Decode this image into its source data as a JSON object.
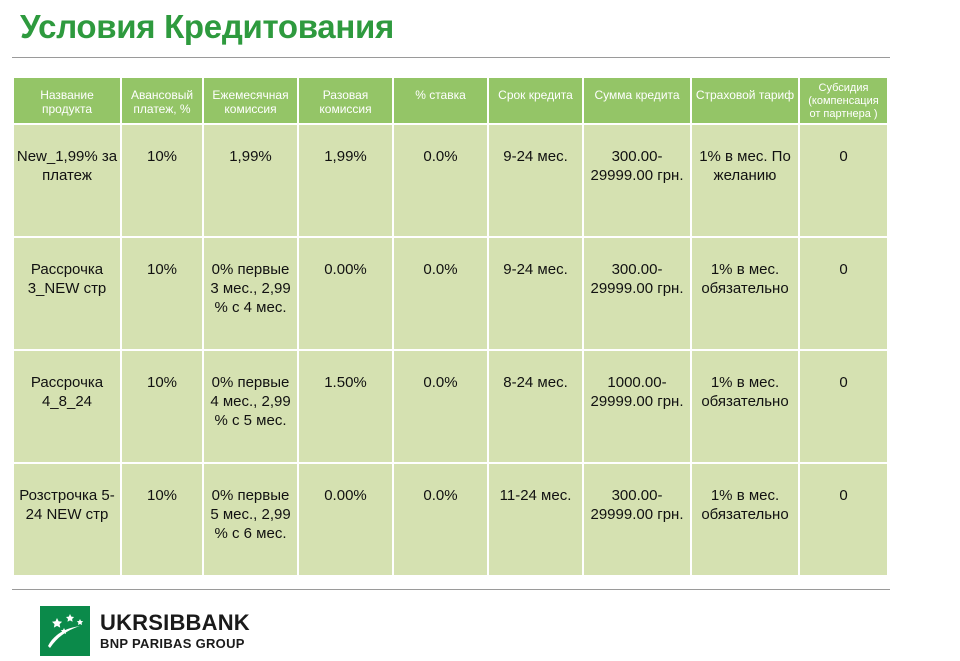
{
  "title": "Условия Кредитования",
  "table": {
    "headers": [
      "Название продукта",
      "Авансовый платеж, %",
      "Ежемесячная комиссия",
      "Разовая комиссия",
      "% ставка",
      "Срок кредита",
      "Сумма кредита",
      "Страховой тариф",
      "Субсидия (компенсация от партнера )"
    ],
    "rows": [
      [
        "New_1,99% за платеж",
        "10%",
        "1,99%",
        "1,99%",
        "0.0%",
        "9-24 мес.",
        "300.00-29999.00 грн.",
        "1% в мес. По желанию",
        "0"
      ],
      [
        "Рассрочка 3_NEW стр",
        "10%",
        "0% первые 3 мес., 2,99 % с 4 мес.",
        "0.00%",
        "0.0%",
        "9-24 мес.",
        "300.00-29999.00 грн.",
        "1% в мес. обязательно",
        "0"
      ],
      [
        "Рассрочка 4_8_24",
        "10%",
        "0% первые 4 мес., 2,99 % с 5 мес.",
        "1.50%",
        "0.0%",
        "8-24 мес.",
        "1000.00-29999.00 грн.",
        "1% в мес. обязательно",
        "0"
      ],
      [
        "Розстрочка 5-24 NEW стр",
        "10%",
        "0% первые 5 мес., 2,99 % с 6 мес.",
        "0.00%",
        "0.0%",
        "11-24 мес.",
        "300.00-29999.00 грн.",
        "1% в мес. обязательно",
        "0"
      ]
    ]
  },
  "brand": {
    "name": "UKRSIBBANK",
    "group": "BNP PARIBAS GROUP",
    "logo_icon": "bnp-stars-logo-icon",
    "colors": {
      "title_green": "#2e9a3e",
      "header_green": "#94c567",
      "cell_green": "#d5e1b1",
      "logo_green": "#0b8a4a"
    }
  }
}
